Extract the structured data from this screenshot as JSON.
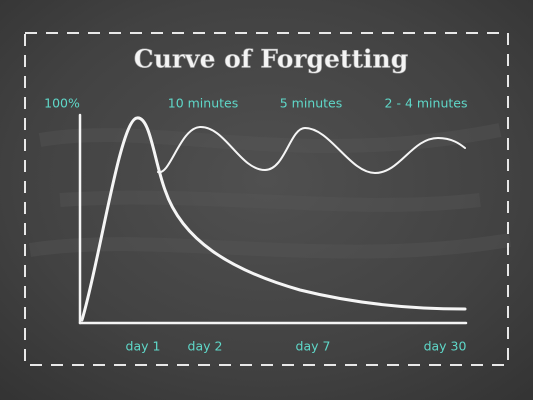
{
  "header": {
    "title": "Curve of Forgetting"
  },
  "y_axis": {
    "top_label": "100%"
  },
  "review_labels": [
    "10 minutes",
    "5 minutes",
    "2 - 4 minutes"
  ],
  "x_axis": {
    "labels": [
      "day 1",
      "day 2",
      "day 7",
      "day 30"
    ]
  }
}
